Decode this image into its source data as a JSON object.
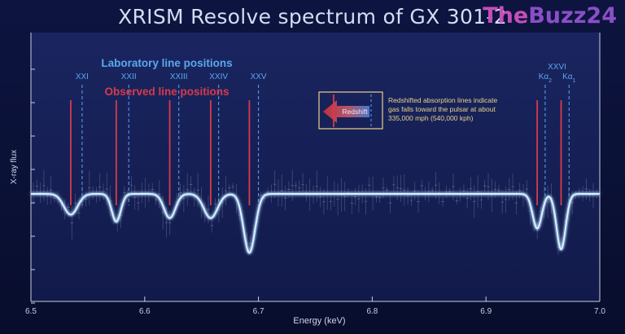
{
  "title": "XRISM Resolve spectrum of GX 301-2",
  "brand": {
    "part1": "The",
    "part2": "Buzz24"
  },
  "colors": {
    "lab_lines": "#5aa8ee",
    "observed_lines": "#d83a4a",
    "curve": "#dff0ff",
    "annotation": "#e8d38a",
    "plot_bg": "#1a2560"
  },
  "legend": {
    "lab": "Laboratory line positions",
    "observed": "Observed line positions"
  },
  "annotation": {
    "lines": [
      "Redshifted absorption lines indicate",
      "gas falls toward the pulsar at about",
      "335,000 mph (540,000 kph)"
    ],
    "arrow_label": "Redshift"
  },
  "chart_data": {
    "type": "line",
    "xlabel": "Energy (keV)",
    "ylabel": "X-ray flux",
    "xlim": [
      6.5,
      7.0
    ],
    "xticks": [
      "6.5",
      "6.6",
      "6.7",
      "6.8",
      "6.9",
      "7.0"
    ],
    "continuum": 1.0,
    "absorption_lines": [
      {
        "label": "XXI",
        "lab_energy": 6.545,
        "observed_energy": 6.535,
        "depth": 0.3,
        "width": 0.006
      },
      {
        "label": "XXII",
        "lab_energy": 6.586,
        "observed_energy": 6.575,
        "depth": 0.4,
        "width": 0.004
      },
      {
        "label": "XXIII",
        "lab_energy": 6.63,
        "observed_energy": 6.622,
        "depth": 0.35,
        "width": 0.005
      },
      {
        "label": "XXIV",
        "lab_energy": 6.665,
        "observed_energy": 6.658,
        "depth": 0.35,
        "width": 0.006
      },
      {
        "label": "XXV",
        "lab_energy": 6.7,
        "observed_energy": 6.692,
        "depth": 0.85,
        "width": 0.005
      },
      {
        "label": "Kα2",
        "lab_energy": 6.952,
        "observed_energy": 6.945,
        "depth": 0.5,
        "width": 0.004
      },
      {
        "label": "Kα1",
        "lab_energy": 6.973,
        "observed_energy": 6.966,
        "depth": 0.8,
        "width": 0.004
      }
    ],
    "xxvi_group_label": "XXVI",
    "grid": false,
    "error_bars": true
  }
}
